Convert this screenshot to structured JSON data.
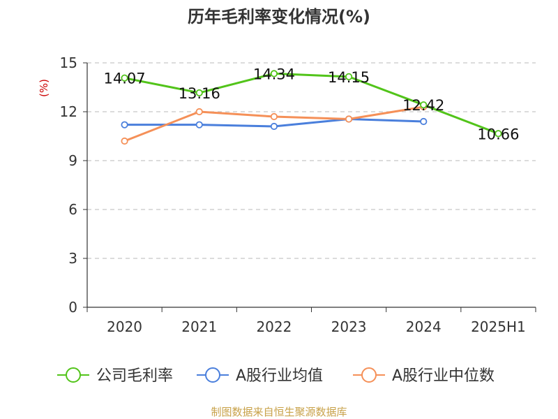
{
  "chart_data": {
    "type": "line",
    "title": "历年毛利率变化情况(%)",
    "ylabel": "(%)",
    "xlabel": "",
    "categories": [
      "2020",
      "2021",
      "2022",
      "2023",
      "2024",
      "2025H1"
    ],
    "ylim": [
      0,
      15
    ],
    "yticks": [
      0,
      3,
      6,
      9,
      12,
      15
    ],
    "grid": true,
    "legend_position": "bottom",
    "series": [
      {
        "name": "公司毛利率",
        "color": "#52c41a",
        "values": [
          14.07,
          13.16,
          14.34,
          14.15,
          12.42,
          10.66
        ],
        "labels": [
          "14.07",
          "13.16",
          "14.34",
          "14.15",
          "12.42",
          "10.66"
        ]
      },
      {
        "name": "A股行业均值",
        "color": "#4a7fdc",
        "values": [
          11.2,
          11.2,
          11.1,
          11.55,
          11.4,
          null
        ]
      },
      {
        "name": "A股行业中位数",
        "color": "#f59058",
        "values": [
          10.2,
          12.0,
          11.7,
          11.55,
          12.3,
          null
        ]
      }
    ],
    "ylabel_color": "#cc0000"
  },
  "source": {
    "text": "制图数据来自恒生聚源数据库",
    "color": "#c8a24a"
  }
}
